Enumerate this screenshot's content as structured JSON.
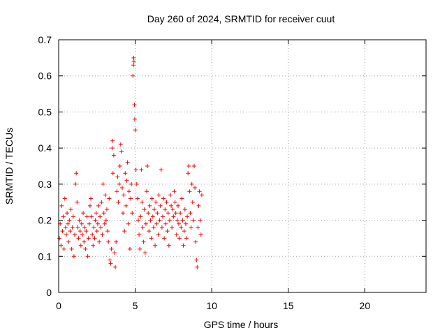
{
  "chart_data": {
    "type": "scatter",
    "title": "Day 260 of 2024, SRMTID for receiver cuut",
    "xlabel": "GPS time / hours",
    "ylabel": "SRMTID / TECUs",
    "xlim": [
      0,
      24
    ],
    "ylim": [
      0,
      0.7
    ],
    "xticks": [
      "0",
      "5",
      "10",
      "15",
      "20"
    ],
    "yticks": [
      "0",
      "0.1",
      "0.2",
      "0.3",
      "0.4",
      "0.5",
      "0.6",
      "0.7"
    ],
    "marker": "+",
    "color": "#ff0000",
    "grid": true,
    "series": [
      {
        "name": "SRMTID",
        "points": [
          [
            0.05,
            0.15
          ],
          [
            0.1,
            0.19
          ],
          [
            0.15,
            0.13
          ],
          [
            0.2,
            0.24
          ],
          [
            0.25,
            0.17
          ],
          [
            0.3,
            0.21
          ],
          [
            0.35,
            0.12
          ],
          [
            0.4,
            0.26
          ],
          [
            0.45,
            0.18
          ],
          [
            0.5,
            0.16
          ],
          [
            0.55,
            0.22
          ],
          [
            0.6,
            0.19
          ],
          [
            0.65,
            0.14
          ],
          [
            0.7,
            0.2
          ],
          [
            0.75,
            0.17
          ],
          [
            0.8,
            0.23
          ],
          [
            0.85,
            0.12
          ],
          [
            0.9,
            0.18
          ],
          [
            0.95,
            0.21
          ],
          [
            1.0,
            0.1
          ],
          [
            1.05,
            0.16
          ],
          [
            1.1,
            0.3
          ],
          [
            1.15,
            0.33
          ],
          [
            1.2,
            0.25
          ],
          [
            1.25,
            0.18
          ],
          [
            1.3,
            0.15
          ],
          [
            1.35,
            0.2
          ],
          [
            1.4,
            0.17
          ],
          [
            1.45,
            0.13
          ],
          [
            1.5,
            0.19
          ],
          [
            1.55,
            0.16
          ],
          [
            1.6,
            0.22
          ],
          [
            1.65,
            0.14
          ],
          [
            1.7,
            0.18
          ],
          [
            1.75,
            0.12
          ],
          [
            1.8,
            0.17
          ],
          [
            1.85,
            0.21
          ],
          [
            1.9,
            0.1
          ],
          [
            1.95,
            0.15
          ],
          [
            2.0,
            0.19
          ],
          [
            2.05,
            0.24
          ],
          [
            2.1,
            0.26
          ],
          [
            2.15,
            0.21
          ],
          [
            2.2,
            0.16
          ],
          [
            2.25,
            0.13
          ],
          [
            2.3,
            0.18
          ],
          [
            2.35,
            0.15
          ],
          [
            2.4,
            0.2
          ],
          [
            2.45,
            0.22
          ],
          [
            2.5,
            0.17
          ],
          [
            2.55,
            0.19
          ],
          [
            2.6,
            0.24
          ],
          [
            2.65,
            0.14
          ],
          [
            2.7,
            0.21
          ],
          [
            2.75,
            0.18
          ],
          [
            2.8,
            0.25
          ],
          [
            2.85,
            0.16
          ],
          [
            2.9,
            0.3
          ],
          [
            2.95,
            0.22
          ],
          [
            3.0,
            0.19
          ],
          [
            3.05,
            0.27
          ],
          [
            3.1,
            0.2
          ],
          [
            3.15,
            0.23
          ],
          [
            3.2,
            0.17
          ],
          [
            3.25,
            0.14
          ],
          [
            3.3,
            0.26
          ],
          [
            3.35,
            0.09
          ],
          [
            3.4,
            0.08
          ],
          [
            3.45,
            0.12
          ],
          [
            3.5,
            0.4
          ],
          [
            3.52,
            0.42
          ],
          [
            3.55,
            0.33
          ],
          [
            3.6,
            0.38
          ],
          [
            3.65,
            0.11
          ],
          [
            3.7,
            0.07
          ],
          [
            3.75,
            0.14
          ],
          [
            3.8,
            0.28
          ],
          [
            3.85,
            0.32
          ],
          [
            3.9,
            0.25
          ],
          [
            3.95,
            0.3
          ],
          [
            4.0,
            0.35
          ],
          [
            4.05,
            0.41
          ],
          [
            4.1,
            0.39
          ],
          [
            4.15,
            0.29
          ],
          [
            4.2,
            0.22
          ],
          [
            4.25,
            0.27
          ],
          [
            4.3,
            0.17
          ],
          [
            4.35,
            0.33
          ],
          [
            4.4,
            0.24
          ],
          [
            4.45,
            0.31
          ],
          [
            4.5,
            0.36
          ],
          [
            4.55,
            0.19
          ],
          [
            4.6,
            0.28
          ],
          [
            4.65,
            0.12
          ],
          [
            4.7,
            0.26
          ],
          [
            4.75,
            0.3
          ],
          [
            4.8,
            0.22
          ],
          [
            4.85,
            0.6
          ],
          [
            4.88,
            0.63
          ],
          [
            4.9,
            0.65
          ],
          [
            4.92,
            0.64
          ],
          [
            4.95,
            0.52
          ],
          [
            4.97,
            0.48
          ],
          [
            5.0,
            0.45
          ],
          [
            5.05,
            0.34
          ],
          [
            5.1,
            0.3
          ],
          [
            5.15,
            0.26
          ],
          [
            5.2,
            0.2
          ],
          [
            5.25,
            0.16
          ],
          [
            5.3,
            0.12
          ],
          [
            5.35,
            0.21
          ],
          [
            5.4,
            0.34
          ],
          [
            5.45,
            0.25
          ],
          [
            5.5,
            0.18
          ],
          [
            5.55,
            0.14
          ],
          [
            5.6,
            0.23
          ],
          [
            5.65,
            0.11
          ],
          [
            5.7,
            0.19
          ],
          [
            5.75,
            0.28
          ],
          [
            5.8,
            0.35
          ],
          [
            5.85,
            0.22
          ],
          [
            5.9,
            0.17
          ],
          [
            5.95,
            0.24
          ],
          [
            6.0,
            0.2
          ],
          [
            6.05,
            0.15
          ],
          [
            6.1,
            0.26
          ],
          [
            6.15,
            0.21
          ],
          [
            6.2,
            0.18
          ],
          [
            6.25,
            0.23
          ],
          [
            6.3,
            0.13
          ],
          [
            6.35,
            0.25
          ],
          [
            6.4,
            0.19
          ],
          [
            6.45,
            0.22
          ],
          [
            6.5,
            0.16
          ],
          [
            6.55,
            0.27
          ],
          [
            6.6,
            0.2
          ],
          [
            6.65,
            0.24
          ],
          [
            6.7,
            0.34
          ],
          [
            6.75,
            0.18
          ],
          [
            6.8,
            0.21
          ],
          [
            6.85,
            0.26
          ],
          [
            6.9,
            0.15
          ],
          [
            6.95,
            0.23
          ],
          [
            7.0,
            0.19
          ],
          [
            7.05,
            0.25
          ],
          [
            7.1,
            0.17
          ],
          [
            7.15,
            0.22
          ],
          [
            7.2,
            0.13
          ],
          [
            7.25,
            0.2
          ],
          [
            7.3,
            0.27
          ],
          [
            7.35,
            0.24
          ],
          [
            7.4,
            0.18
          ],
          [
            7.45,
            0.23
          ],
          [
            7.5,
            0.21
          ],
          [
            7.55,
            0.28
          ],
          [
            7.6,
            0.25
          ],
          [
            7.65,
            0.22
          ],
          [
            7.7,
            0.16
          ],
          [
            7.75,
            0.2
          ],
          [
            7.8,
            0.24
          ],
          [
            7.85,
            0.19
          ],
          [
            7.9,
            0.15
          ],
          [
            7.95,
            0.22
          ],
          [
            8.0,
            0.18
          ],
          [
            8.05,
            0.26
          ],
          [
            8.1,
            0.2
          ],
          [
            8.15,
            0.13
          ],
          [
            8.2,
            0.17
          ],
          [
            8.25,
            0.23
          ],
          [
            8.3,
            0.19
          ],
          [
            8.35,
            0.15
          ],
          [
            8.4,
            0.21
          ],
          [
            8.45,
            0.33
          ],
          [
            8.5,
            0.35
          ],
          [
            8.55,
            0.28
          ],
          [
            8.6,
            0.22
          ],
          [
            8.65,
            0.18
          ],
          [
            8.7,
            0.3
          ],
          [
            8.75,
            0.25
          ],
          [
            8.8,
            0.2
          ],
          [
            8.85,
            0.35
          ],
          [
            8.9,
            0.29
          ],
          [
            8.95,
            0.14
          ],
          [
            9.0,
            0.09
          ],
          [
            9.05,
            0.07
          ],
          [
            9.1,
            0.18
          ],
          [
            9.15,
            0.24
          ],
          [
            9.2,
            0.28
          ],
          [
            9.25,
            0.2
          ],
          [
            9.3,
            0.16
          ],
          [
            9.35,
            0.27
          ]
        ]
      }
    ]
  }
}
